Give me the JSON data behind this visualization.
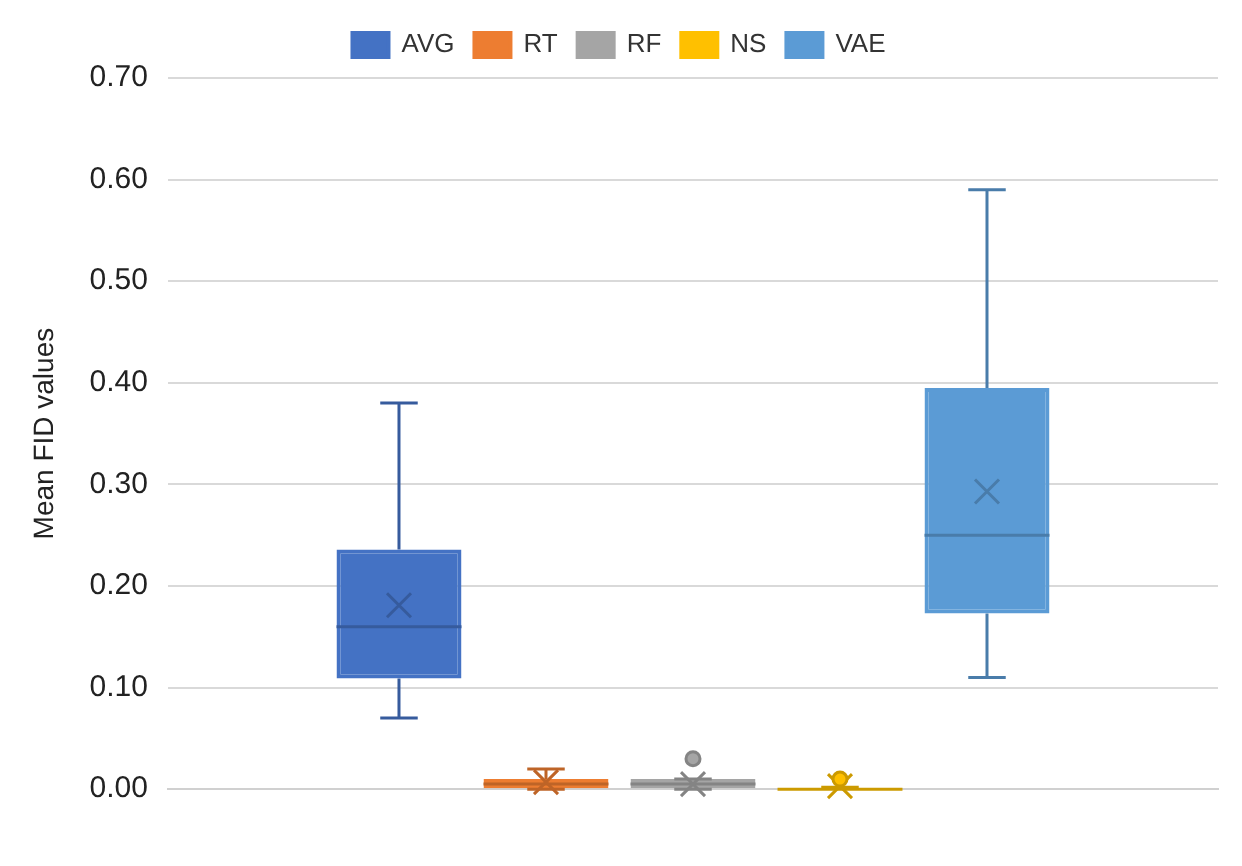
{
  "chart_data": {
    "type": "box",
    "ylabel": "Mean FID values",
    "categories": [
      null
    ],
    "series": [
      {
        "name": "AVG",
        "color": "#4472c4",
        "boxes": [
          {
            "low": 0.07,
            "q1": 0.109,
            "median": 0.16,
            "q3": 0.236,
            "high": 0.38,
            "mean": 0.181
          }
        ]
      },
      {
        "name": "RT",
        "color": "#ed7d31",
        "boxes": [
          {
            "low": 0,
            "q1": 0,
            "median": 0.005,
            "q3": 0.01,
            "high": 0.02,
            "mean": 0.007
          }
        ]
      },
      {
        "name": "RF",
        "color": "#a5a5a5",
        "boxes": [
          {
            "low": 0,
            "q1": 0,
            "median": 0.005,
            "q3": 0.01,
            "high": 0.01,
            "mean": 0.005,
            "outliers": [
              0.03
            ]
          }
        ]
      },
      {
        "name": "NS",
        "color": "#ffc000",
        "boxes": [
          {
            "low": 0,
            "q1": 0,
            "median": 0,
            "q3": 0.001,
            "high": 0.002,
            "mean": 0.003,
            "outliers": [
              0.01
            ]
          }
        ]
      },
      {
        "name": "VAE",
        "color": "#5b9bd5",
        "boxes": [
          {
            "low": 0.11,
            "q1": 0.173,
            "median": 0.25,
            "q3": 0.395,
            "high": 0.59,
            "mean": 0.293
          }
        ]
      }
    ],
    "ylim": [
      0,
      0.7
    ],
    "yticks": [
      {
        "value": 0,
        "label": "0.00"
      },
      {
        "value": 0.1,
        "label": "0.10"
      },
      {
        "value": 0.2,
        "label": "0.20"
      },
      {
        "value": 0.3,
        "label": "0.30"
      },
      {
        "value": 0.4,
        "label": "0.40"
      },
      {
        "value": 0.5,
        "label": "0.50"
      },
      {
        "value": 0.6,
        "label": "0.60"
      },
      {
        "value": 0.7,
        "label": "0.70"
      }
    ],
    "grid": "y",
    "legend": "top",
    "marker": "cross"
  }
}
